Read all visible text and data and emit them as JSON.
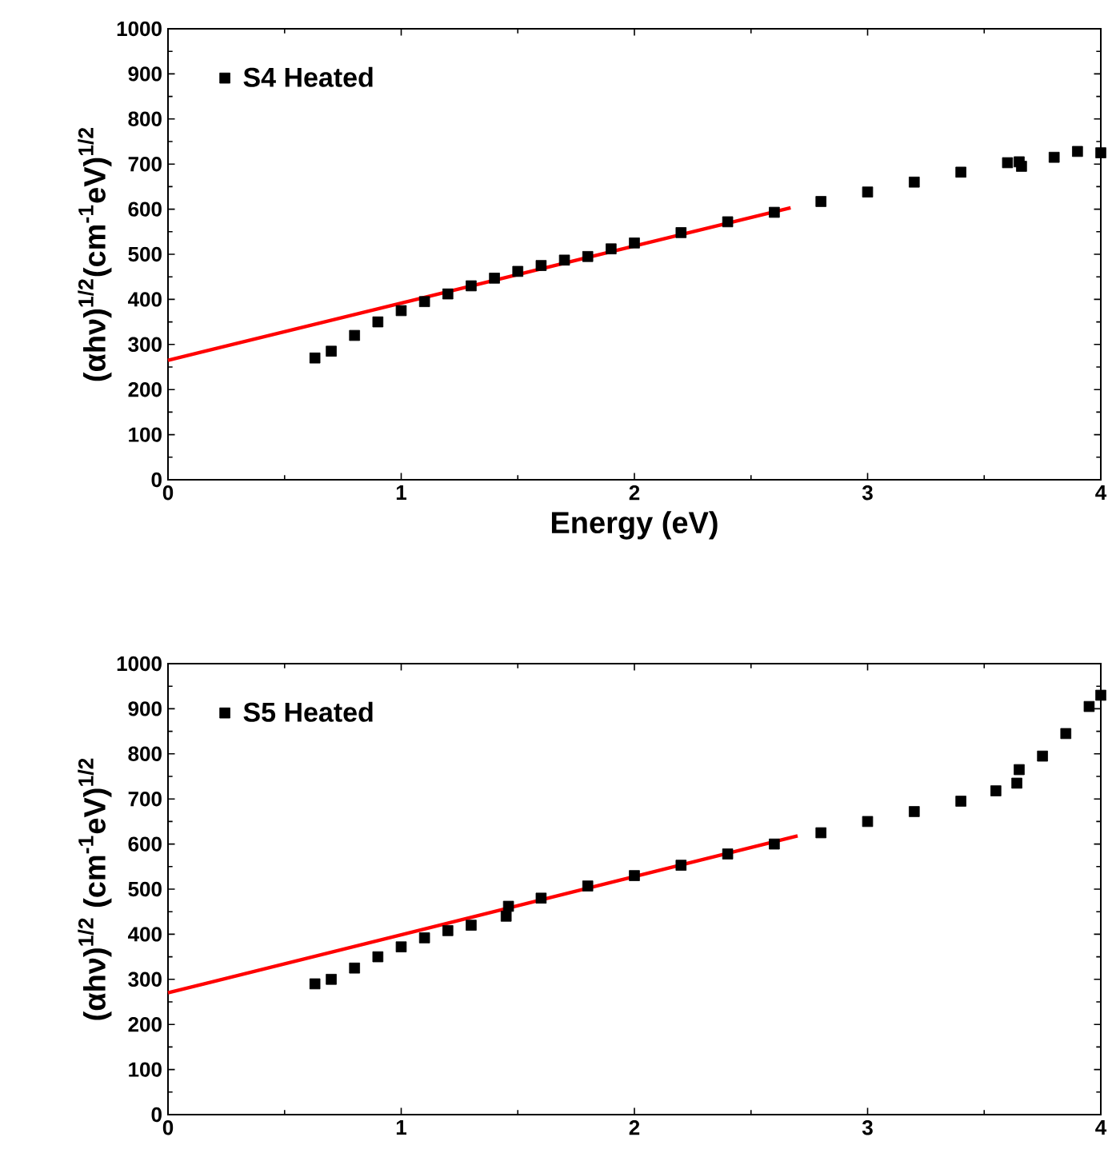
{
  "chart_data": [
    {
      "type": "scatter",
      "xlabel": "Energy (eV)",
      "ylabel": "(αhν)$^{1/2}$(cm$^{-1}$eV)$^{1/2}$",
      "xlim": [
        0,
        4
      ],
      "ylim": [
        0,
        1000
      ],
      "xticks": [
        0,
        1,
        2,
        3,
        4
      ],
      "yticks": [
        0,
        100,
        200,
        300,
        400,
        500,
        600,
        700,
        800,
        900,
        1000
      ],
      "legend": "top left",
      "series": [
        {
          "name": "S4 Heated",
          "marker": "square",
          "color": "#000000",
          "x": [
            0.63,
            0.7,
            0.8,
            0.9,
            1.0,
            1.1,
            1.2,
            1.3,
            1.4,
            1.5,
            1.6,
            1.7,
            1.8,
            1.9,
            2.0,
            2.2,
            2.4,
            2.6,
            2.8,
            3.0,
            3.2,
            3.4,
            3.6,
            3.65,
            3.66,
            3.8,
            3.9,
            4.0
          ],
          "values": [
            270,
            285,
            320,
            350,
            375,
            395,
            412,
            430,
            447,
            462,
            475,
            487,
            495,
            512,
            525,
            548,
            572,
            593,
            617,
            638,
            660,
            682,
            703,
            705,
            695,
            715,
            728,
            725
          ]
        },
        {
          "type": "line",
          "marker": "none",
          "color": "#ff0000",
          "x": [
            0,
            2.67
          ],
          "values": [
            265,
            603
          ]
        }
      ]
    },
    {
      "type": "scatter",
      "ylabel": "(αhν)$^{1/2}$ (cm$^{-1}$eV)$^{1/2}$",
      "xlim": [
        0,
        4
      ],
      "ylim": [
        0,
        1000
      ],
      "xticks": [
        0,
        1,
        2,
        3,
        4
      ],
      "yticks": [
        0,
        100,
        200,
        300,
        400,
        500,
        600,
        700,
        800,
        900,
        1000
      ],
      "legend": "top left",
      "series": [
        {
          "name": "S5 Heated",
          "marker": "square",
          "color": "#000000",
          "x": [
            0.63,
            0.7,
            0.8,
            0.9,
            1.0,
            1.1,
            1.2,
            1.3,
            1.45,
            1.46,
            1.6,
            1.8,
            2.0,
            2.2,
            2.4,
            2.6,
            2.8,
            3.0,
            3.2,
            3.4,
            3.55,
            3.64,
            3.65,
            3.75,
            3.85,
            3.95,
            4.0
          ],
          "values": [
            290,
            300,
            325,
            350,
            372,
            392,
            408,
            420,
            440,
            462,
            480,
            507,
            530,
            553,
            578,
            600,
            625,
            650,
            672,
            695,
            718,
            735,
            765,
            795,
            845,
            905,
            930
          ]
        },
        {
          "type": "line",
          "marker": "none",
          "color": "#ff0000",
          "x": [
            0,
            2.7
          ],
          "values": [
            270,
            618
          ]
        }
      ]
    }
  ]
}
